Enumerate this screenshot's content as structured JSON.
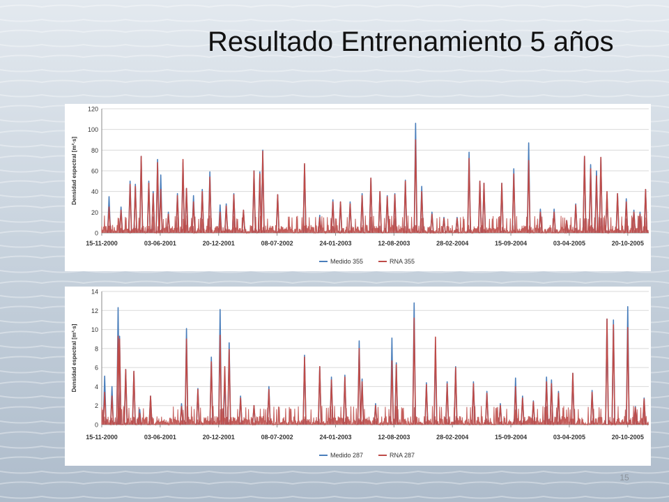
{
  "slide": {
    "title": "Resultado Entrenamiento 5 años",
    "page_number": "15"
  },
  "colors": {
    "measured": "#4a7ebb",
    "model": "#be4b48"
  },
  "chart_data": [
    {
      "type": "line",
      "title": "",
      "xlabel": "",
      "ylabel": "Densidad espectral [m²·s]",
      "x_range": [
        "2000-11-15",
        "2005-12-31"
      ],
      "x_ticks": [
        "15-11-2000",
        "03-06-2001",
        "20-12-2001",
        "08-07-2002",
        "24-01-2003",
        "12-08-2003",
        "28-02-2004",
        "15-09-2004",
        "03-04-2005",
        "20-10-2005"
      ],
      "ylim": [
        0,
        120
      ],
      "y_ticks": [
        0,
        20,
        40,
        60,
        80,
        100,
        120
      ],
      "grid": true,
      "legend_position": "bottom",
      "series": [
        {
          "name": "Medido 355",
          "points": [
            [
              "2000-12-10",
              35
            ],
            [
              "2001-01-20",
              25
            ],
            [
              "2001-02-20",
              50
            ],
            [
              "2001-03-10",
              47
            ],
            [
              "2001-03-30",
              74
            ],
            [
              "2001-04-25",
              50
            ],
            [
              "2001-05-10",
              40
            ],
            [
              "2001-05-25",
              71
            ],
            [
              "2001-06-05",
              56
            ],
            [
              "2001-07-01",
              20
            ],
            [
              "2001-08-01",
              38
            ],
            [
              "2001-08-20",
              68
            ],
            [
              "2001-09-01",
              43
            ],
            [
              "2001-09-25",
              36
            ],
            [
              "2001-10-25",
              42
            ],
            [
              "2001-11-20",
              59
            ],
            [
              "2001-12-25",
              27
            ],
            [
              "2002-01-15",
              28
            ],
            [
              "2002-02-10",
              38
            ],
            [
              "2002-03-15",
              22
            ],
            [
              "2002-04-20",
              60
            ],
            [
              "2002-05-10",
              59
            ],
            [
              "2002-05-20",
              80
            ],
            [
              "2002-07-10",
              37
            ],
            [
              "2002-10-10",
              66
            ],
            [
              "2002-12-01",
              17
            ],
            [
              "2003-01-15",
              32
            ],
            [
              "2003-02-10",
              30
            ],
            [
              "2003-03-15",
              30
            ],
            [
              "2003-04-25",
              38
            ],
            [
              "2003-05-25",
              53
            ],
            [
              "2003-06-25",
              40
            ],
            [
              "2003-07-20",
              36
            ],
            [
              "2003-08-15",
              38
            ],
            [
              "2003-09-20",
              51
            ],
            [
              "2003-10-25",
              106
            ],
            [
              "2003-11-15",
              45
            ],
            [
              "2003-12-20",
              20
            ],
            [
              "2004-01-30",
              15
            ],
            [
              "2004-03-15",
              15
            ],
            [
              "2004-04-25",
              78
            ],
            [
              "2004-06-01",
              50
            ],
            [
              "2004-06-15",
              48
            ],
            [
              "2004-08-15",
              48
            ],
            [
              "2004-09-25",
              62
            ],
            [
              "2004-11-15",
              87
            ],
            [
              "2004-12-25",
              23
            ],
            [
              "2005-02-10",
              23
            ],
            [
              "2005-03-25",
              12
            ],
            [
              "2005-04-25",
              28
            ],
            [
              "2005-05-25",
              74
            ],
            [
              "2005-06-15",
              66
            ],
            [
              "2005-07-05",
              60
            ],
            [
              "2005-07-20",
              73
            ],
            [
              "2005-08-10",
              37
            ],
            [
              "2005-09-15",
              38
            ],
            [
              "2005-10-15",
              33
            ],
            [
              "2005-11-10",
              22
            ],
            [
              "2005-12-01",
              20
            ],
            [
              "2005-12-20",
              42
            ]
          ]
        },
        {
          "name": "RNA 355",
          "points": [
            [
              "2000-12-10",
              25
            ],
            [
              "2001-01-20",
              22
            ],
            [
              "2001-02-20",
              47
            ],
            [
              "2001-03-10",
              45
            ],
            [
              "2001-03-30",
              74
            ],
            [
              "2001-04-25",
              48
            ],
            [
              "2001-05-10",
              38
            ],
            [
              "2001-05-25",
              68
            ],
            [
              "2001-06-05",
              42
            ],
            [
              "2001-07-01",
              18
            ],
            [
              "2001-08-01",
              36
            ],
            [
              "2001-08-20",
              71
            ],
            [
              "2001-09-01",
              43
            ],
            [
              "2001-09-25",
              30
            ],
            [
              "2001-10-25",
              40
            ],
            [
              "2001-11-20",
              54
            ],
            [
              "2001-12-25",
              20
            ],
            [
              "2002-01-15",
              26
            ],
            [
              "2002-02-10",
              37
            ],
            [
              "2002-03-15",
              22
            ],
            [
              "2002-04-20",
              60
            ],
            [
              "2002-05-10",
              57
            ],
            [
              "2002-05-20",
              79
            ],
            [
              "2002-07-10",
              37
            ],
            [
              "2002-10-10",
              67
            ],
            [
              "2002-12-01",
              15
            ],
            [
              "2003-01-15",
              30
            ],
            [
              "2003-02-10",
              30
            ],
            [
              "2003-03-15",
              28
            ],
            [
              "2003-04-25",
              36
            ],
            [
              "2003-05-25",
              53
            ],
            [
              "2003-06-25",
              40
            ],
            [
              "2003-07-20",
              35
            ],
            [
              "2003-08-15",
              37
            ],
            [
              "2003-09-20",
              50
            ],
            [
              "2003-10-25",
              90
            ],
            [
              "2003-11-15",
              40
            ],
            [
              "2003-12-20",
              18
            ],
            [
              "2004-01-30",
              14
            ],
            [
              "2004-03-15",
              14
            ],
            [
              "2004-04-25",
              72
            ],
            [
              "2004-06-01",
              50
            ],
            [
              "2004-06-15",
              48
            ],
            [
              "2004-08-15",
              48
            ],
            [
              "2004-09-25",
              57
            ],
            [
              "2004-11-15",
              70
            ],
            [
              "2004-12-25",
              20
            ],
            [
              "2005-02-10",
              20
            ],
            [
              "2005-03-25",
              12
            ],
            [
              "2005-04-25",
              27
            ],
            [
              "2005-05-25",
              74
            ],
            [
              "2005-06-15",
              62
            ],
            [
              "2005-07-05",
              55
            ],
            [
              "2005-07-20",
              73
            ],
            [
              "2005-08-10",
              40
            ],
            [
              "2005-09-15",
              38
            ],
            [
              "2005-10-15",
              30
            ],
            [
              "2005-11-10",
              20
            ],
            [
              "2005-12-01",
              18
            ],
            [
              "2005-12-20",
              42
            ]
          ]
        }
      ]
    },
    {
      "type": "line",
      "title": "",
      "xlabel": "",
      "ylabel": "Densidad espectral [m²·s]",
      "x_range": [
        "2000-11-15",
        "2005-12-31"
      ],
      "x_ticks": [
        "15-11-2000",
        "03-06-2001",
        "20-12-2001",
        "08-07-2002",
        "24-01-2003",
        "12-08-2003",
        "28-02-2004",
        "15-09-2004",
        "03-04-2005",
        "20-10-2005"
      ],
      "ylim": [
        0,
        14
      ],
      "y_ticks": [
        0,
        2,
        4,
        6,
        8,
        10,
        12,
        14
      ],
      "grid": true,
      "legend_position": "bottom",
      "series": [
        {
          "name": "Medido 287",
          "points": [
            [
              "2000-11-25",
              5.1
            ],
            [
              "2000-12-20",
              4.0
            ],
            [
              "2001-01-10",
              12.3
            ],
            [
              "2001-01-15",
              9.3
            ],
            [
              "2001-02-05",
              5.8
            ],
            [
              "2001-03-05",
              5.6
            ],
            [
              "2001-03-25",
              1.6
            ],
            [
              "2001-05-01",
              3.0
            ],
            [
              "2001-08-15",
              2.2
            ],
            [
              "2001-09-01",
              10.1
            ],
            [
              "2001-10-10",
              3.8
            ],
            [
              "2001-11-25",
              7.1
            ],
            [
              "2001-12-25",
              12.1
            ],
            [
              "2002-01-10",
              4.9
            ],
            [
              "2002-01-25",
              8.6
            ],
            [
              "2002-03-05",
              3.0
            ],
            [
              "2002-04-20",
              2.0
            ],
            [
              "2002-06-10",
              4.0
            ],
            [
              "2002-10-10",
              7.3
            ],
            [
              "2002-12-01",
              6.1
            ],
            [
              "2003-01-10",
              5.0
            ],
            [
              "2003-02-25",
              5.2
            ],
            [
              "2003-04-15",
              8.8
            ],
            [
              "2003-04-25",
              4.8
            ],
            [
              "2003-06-10",
              2.2
            ],
            [
              "2003-08-05",
              9.1
            ],
            [
              "2003-08-20",
              6.5
            ],
            [
              "2003-10-20",
              12.8
            ],
            [
              "2003-12-01",
              4.4
            ],
            [
              "2004-01-01",
              8.3
            ],
            [
              "2004-02-10",
              4.5
            ],
            [
              "2004-03-10",
              6.1
            ],
            [
              "2004-05-10",
              4.5
            ],
            [
              "2004-06-25",
              3.5
            ],
            [
              "2004-08-10",
              2.2
            ],
            [
              "2004-10-01",
              4.9
            ],
            [
              "2004-10-25",
              3.0
            ],
            [
              "2004-12-01",
              2.5
            ],
            [
              "2005-01-15",
              5.0
            ],
            [
              "2005-02-01",
              4.7
            ],
            [
              "2005-02-25",
              3.5
            ],
            [
              "2005-04-15",
              5.4
            ],
            [
              "2005-06-20",
              3.6
            ],
            [
              "2005-08-10",
              11.1
            ],
            [
              "2005-09-01",
              11.0
            ],
            [
              "2005-10-20",
              12.4
            ],
            [
              "2005-11-15",
              1.9
            ],
            [
              "2005-12-15",
              2.8
            ]
          ]
        },
        {
          "name": "RNA 287",
          "points": [
            [
              "2000-11-25",
              3.4
            ],
            [
              "2000-12-20",
              3.0
            ],
            [
              "2001-01-10",
              9.3
            ],
            [
              "2001-01-15",
              9.0
            ],
            [
              "2001-02-05",
              5.8
            ],
            [
              "2001-03-05",
              5.6
            ],
            [
              "2001-03-25",
              1.2
            ],
            [
              "2001-05-01",
              3.0
            ],
            [
              "2001-08-15",
              1.9
            ],
            [
              "2001-09-01",
              9.0
            ],
            [
              "2001-10-10",
              3.7
            ],
            [
              "2001-11-25",
              6.6
            ],
            [
              "2001-12-25",
              9.4
            ],
            [
              "2002-01-10",
              6.1
            ],
            [
              "2002-01-25",
              7.9
            ],
            [
              "2002-03-05",
              2.8
            ],
            [
              "2002-04-20",
              2.0
            ],
            [
              "2002-06-10",
              3.7
            ],
            [
              "2002-10-10",
              7.1
            ],
            [
              "2002-12-01",
              6.1
            ],
            [
              "2003-01-10",
              4.7
            ],
            [
              "2003-02-25",
              5.0
            ],
            [
              "2003-04-15",
              8.0
            ],
            [
              "2003-04-25",
              4.5
            ],
            [
              "2003-06-10",
              2.0
            ],
            [
              "2003-08-05",
              6.7
            ],
            [
              "2003-08-20",
              6.3
            ],
            [
              "2003-10-20",
              11.2
            ],
            [
              "2003-12-01",
              4.2
            ],
            [
              "2004-01-01",
              9.2
            ],
            [
              "2004-02-10",
              4.3
            ],
            [
              "2004-03-10",
              6.0
            ],
            [
              "2004-05-10",
              4.3
            ],
            [
              "2004-06-25",
              3.3
            ],
            [
              "2004-08-10",
              2.0
            ],
            [
              "2004-10-01",
              4.0
            ],
            [
              "2004-10-25",
              2.8
            ],
            [
              "2004-12-01",
              2.4
            ],
            [
              "2005-01-15",
              4.5
            ],
            [
              "2005-02-01",
              4.3
            ],
            [
              "2005-02-25",
              3.3
            ],
            [
              "2005-04-15",
              5.4
            ],
            [
              "2005-06-20",
              3.4
            ],
            [
              "2005-08-10",
              11.1
            ],
            [
              "2005-09-01",
              10.5
            ],
            [
              "2005-10-20",
              10.2
            ],
            [
              "2005-11-15",
              1.8
            ],
            [
              "2005-12-15",
              2.7
            ]
          ]
        }
      ]
    }
  ]
}
